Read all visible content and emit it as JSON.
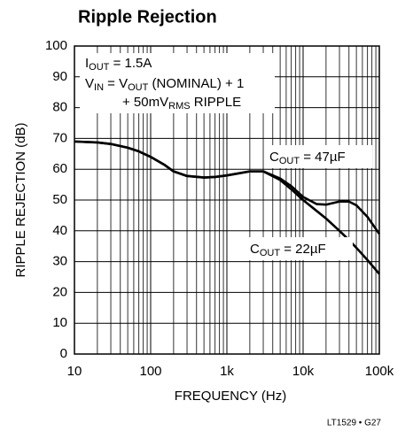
{
  "chart_data": {
    "type": "line",
    "title": "Ripple Rejection",
    "xlabel": "FREQUENCY (Hz)",
    "ylabel": "RIPPLE REJECTION (dB)",
    "footnote": "LT1529 • G27",
    "annotations": [
      [
        "I",
        "OUT",
        " = 1.5A"
      ],
      [
        "V",
        "IN",
        " = V",
        "OUT",
        " (NOMINAL) + 1"
      ],
      [
        "+ 50mV",
        "RMS",
        " RIPPLE"
      ]
    ],
    "x": [
      10,
      20,
      30,
      50,
      70,
      100,
      150,
      200,
      300,
      500,
      700,
      1000,
      2000,
      3000,
      5000,
      7000,
      10000,
      15000,
      20000,
      30000,
      40000,
      50000,
      70000,
      100000
    ],
    "series": [
      {
        "name": [
          "C",
          "OUT",
          " = 47µF"
        ],
        "color": "#000000",
        "values": [
          69,
          68.7,
          68.2,
          67,
          65.8,
          64,
          61.5,
          59.3,
          57.8,
          57.3,
          57.5,
          58,
          59.3,
          59.3,
          57,
          54.5,
          51,
          48.7,
          48.5,
          49.5,
          49.5,
          48.3,
          44.5,
          39
        ]
      },
      {
        "name": [
          "C",
          "OUT",
          " = 22µF"
        ],
        "color": "#000000",
        "values": [
          69,
          68.7,
          68.2,
          67,
          65.8,
          64,
          61.5,
          59.3,
          57.8,
          57.3,
          57.5,
          58,
          59.3,
          59.3,
          56.5,
          53.5,
          50,
          46.5,
          44,
          40,
          37,
          34.5,
          30.5,
          26
        ]
      }
    ],
    "xscale": "log",
    "xlim": [
      10,
      100000
    ],
    "xticks": [
      10,
      100,
      {
        "value": 1000,
        "label": "1k"
      },
      {
        "value": 10000,
        "label": "10k"
      },
      {
        "value": 100000,
        "label": "100k"
      }
    ],
    "ylim": [
      0,
      100
    ],
    "yticks": [
      0,
      10,
      20,
      30,
      40,
      50,
      60,
      70,
      80,
      90,
      100
    ],
    "grid": true,
    "minor_grid": true
  }
}
